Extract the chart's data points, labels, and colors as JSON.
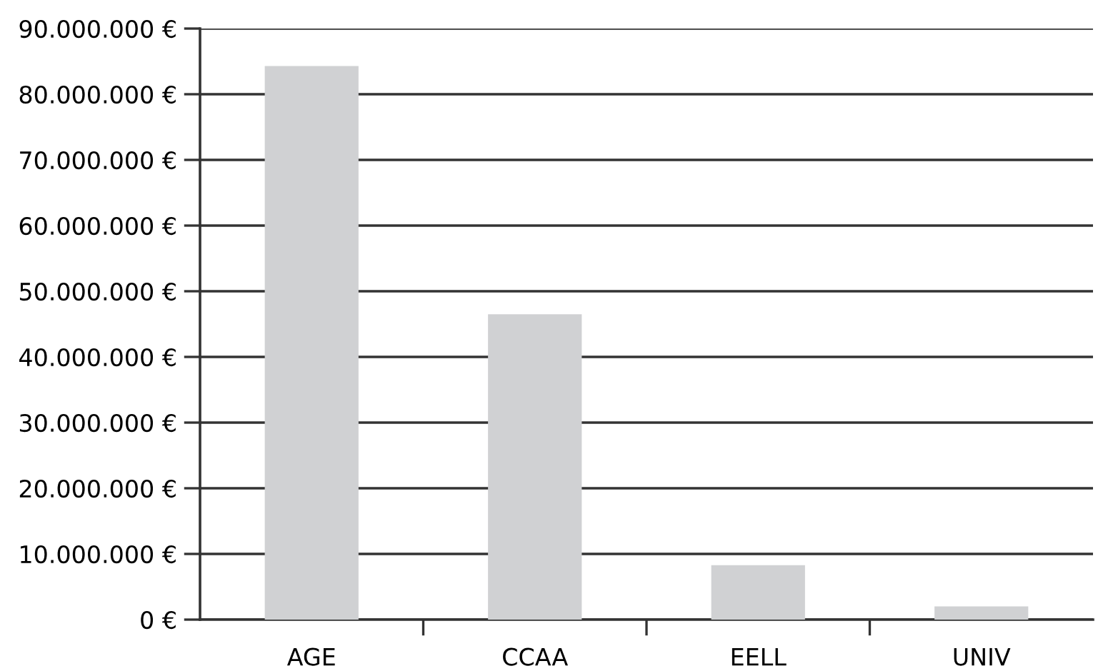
{
  "chart_data": {
    "type": "bar",
    "categories": [
      "AGE",
      "CCAA",
      "EELL",
      "UNIV"
    ],
    "values": [
      84300000,
      46500000,
      8300000,
      2000000
    ],
    "color": "#d0d1d3",
    "ylim": [
      0,
      90000000
    ],
    "yticks": [
      {
        "value": 0,
        "label": "0 €"
      },
      {
        "value": 10000000,
        "label": "10.000.000 €"
      },
      {
        "value": 20000000,
        "label": "20.000.000 €"
      },
      {
        "value": 30000000,
        "label": "30.000.000 €"
      },
      {
        "value": 40000000,
        "label": "40.000.000 €"
      },
      {
        "value": 50000000,
        "label": "50.000.000 €"
      },
      {
        "value": 60000000,
        "label": "60.000.000 €"
      },
      {
        "value": 70000000,
        "label": "70.000.000 €"
      },
      {
        "value": 80000000,
        "label": "80.000.000 €"
      },
      {
        "value": 90000000,
        "label": "90.000.000 €"
      }
    ],
    "grid": "y"
  }
}
